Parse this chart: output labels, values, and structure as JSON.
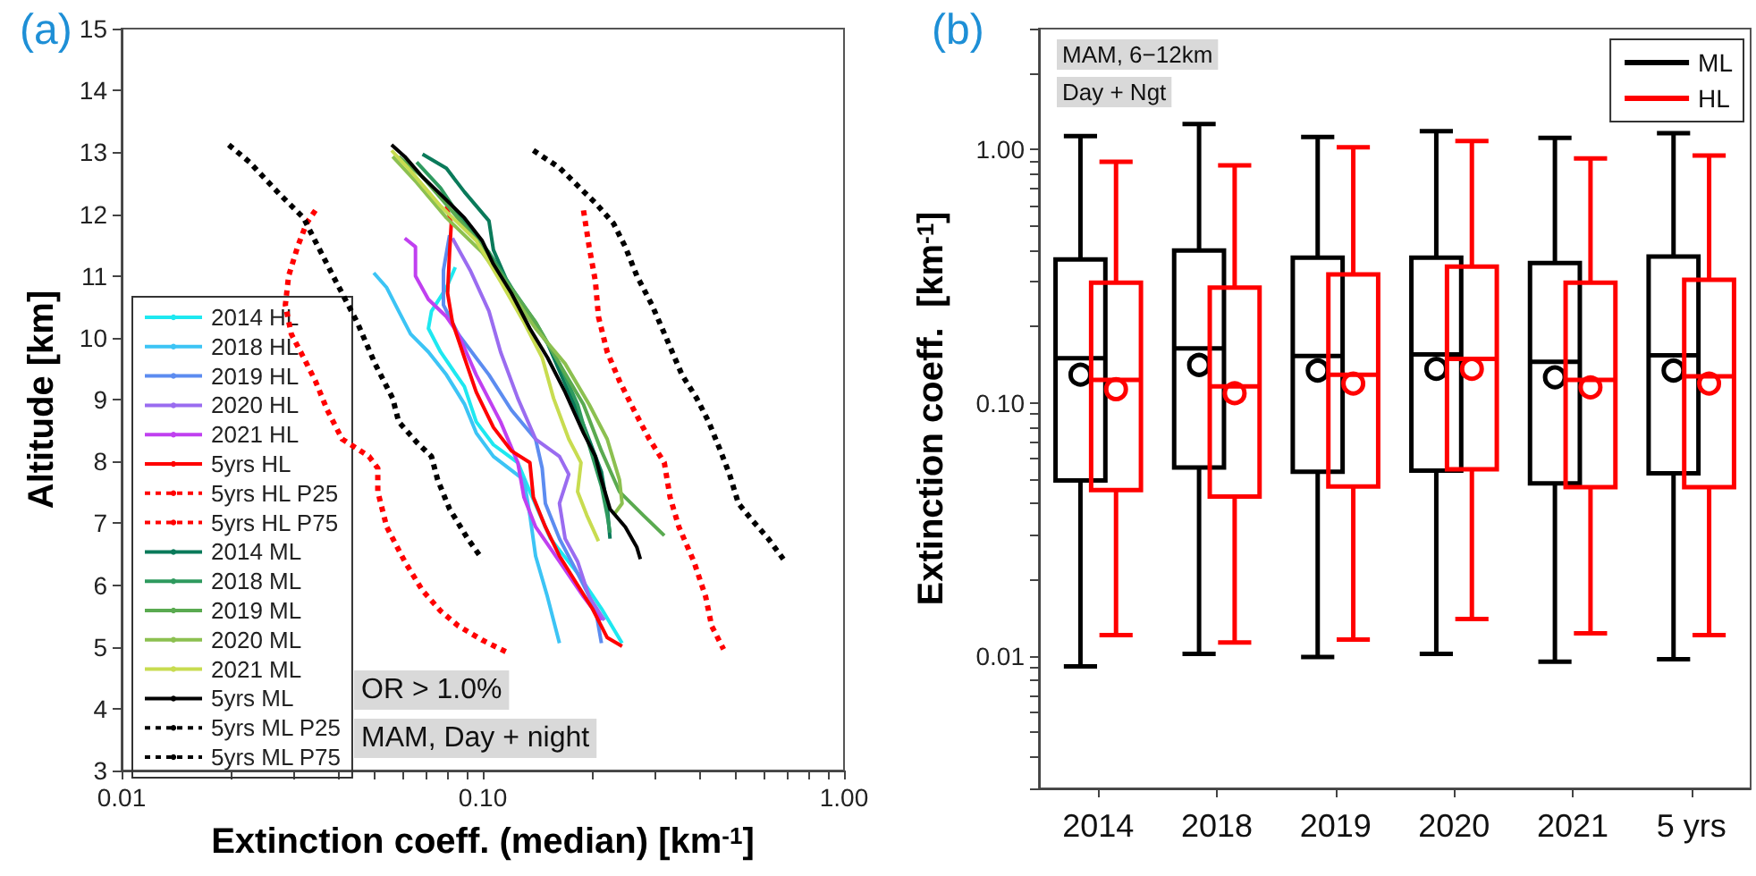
{
  "chart_data": [
    {
      "type": "line",
      "title": "(a)",
      "xlabel": "Extinction coeff. (median) [km$^{-1}$]",
      "ylabel": "Altitude [km]",
      "log": "x",
      "xlim": [
        0.01,
        1.0
      ],
      "xticks": [
        {
          "value": 0.01,
          "label": "0.01"
        },
        {
          "value": 0.1,
          "label": "0.10"
        },
        {
          "value": 1.0,
          "label": "1.00"
        }
      ],
      "ylim": [
        3,
        15
      ],
      "yticks": [
        3,
        4,
        5,
        6,
        7,
        8,
        9,
        10,
        11,
        12,
        13,
        14,
        15
      ],
      "grid": false,
      "legend": "bottom left",
      "marker": "none",
      "annotations": [
        "OR > 1.0%",
        "MAM, Day + night"
      ],
      "series": [
        {
          "name": "2014 HL",
          "color": "#1ee8f0",
          "line_style": "solid",
          "x": [
            0.0839,
            0.0793,
            0.0721,
            0.0707,
            0.0764,
            0.0889,
            0.0959,
            0.107,
            0.125,
            0.135,
            0.154,
            0.183,
            0.213,
            0.243
          ],
          "values": [
            11.14,
            10.81,
            10.43,
            10.15,
            9.77,
            9.21,
            8.64,
            8.27,
            7.98,
            7.51,
            6.75,
            6.19,
            5.62,
            5.06
          ]
        },
        {
          "name": "2018 HL",
          "color": "#3cc4f5",
          "line_style": "solid",
          "x": [
            0.0499,
            0.0542,
            0.0585,
            0.0631,
            0.0707,
            0.0793,
            0.0889,
            0.0959,
            0.107,
            0.13,
            0.135,
            0.14,
            0.151,
            0.163
          ],
          "values": [
            11.05,
            10.81,
            10.43,
            10.06,
            9.77,
            9.4,
            8.93,
            8.46,
            8.08,
            7.7,
            7.13,
            6.47,
            5.81,
            5.06
          ]
        },
        {
          "name": "2019 HL",
          "color": "#5c8cf0",
          "line_style": "solid",
          "x": [
            0.0809,
            0.0778,
            0.0778,
            0.0855,
            0.104,
            0.12,
            0.14,
            0.146,
            0.149,
            0.163,
            0.183,
            0.205,
            0.213
          ],
          "values": [
            11.66,
            11.09,
            10.53,
            10.06,
            9.4,
            8.83,
            8.36,
            7.89,
            7.32,
            6.75,
            6.19,
            5.62,
            5.06
          ]
        },
        {
          "name": "2020 HL",
          "color": "#9a6cf0",
          "line_style": "solid",
          "x": [
            0.0824,
            0.0923,
            0.104,
            0.112,
            0.125,
            0.14,
            0.163,
            0.173,
            0.163,
            0.169,
            0.183,
            0.197,
            0.217
          ],
          "values": [
            11.61,
            11.09,
            10.43,
            9.77,
            9.02,
            8.36,
            8.08,
            7.79,
            7.32,
            6.75,
            6.38,
            5.81,
            5.43
          ]
        },
        {
          "name": "2021 HL",
          "color": "#c040f0",
          "line_style": "solid",
          "x": [
            0.0608,
            0.0651,
            0.0651,
            0.0707,
            0.0793,
            0.0855,
            0.0959,
            0.112,
            0.125,
            0.13,
            0.14,
            0.163,
            0.19,
            0.213
          ],
          "values": [
            11.61,
            11.47,
            11.0,
            10.62,
            10.34,
            10.06,
            9.4,
            8.64,
            7.98,
            7.42,
            6.94,
            6.38,
            5.81,
            5.43
          ]
        },
        {
          "name": "5yrs HL",
          "color": "#ff0000",
          "line_style": "solid",
          "x": [
            0.0793,
            0.0818,
            0.0809,
            0.0799,
            0.0824,
            0.0889,
            0.0959,
            0.107,
            0.12,
            0.135,
            0.138,
            0.149,
            0.163,
            0.183,
            0.201,
            0.221,
            0.243
          ],
          "values": [
            12.13,
            11.85,
            11.38,
            10.72,
            10.25,
            9.68,
            9.12,
            8.55,
            8.17,
            7.98,
            7.42,
            6.94,
            6.47,
            6.0,
            5.62,
            5.15,
            5.01
          ]
        },
        {
          "name": "5yrs HL P25",
          "color": "#ff0000",
          "line_style": "dashed",
          "x": [
            0.0344,
            0.0325,
            0.0307,
            0.029,
            0.0284,
            0.0295,
            0.0319,
            0.0344,
            0.0371,
            0.0408,
            0.0484,
            0.0512,
            0.0512,
            0.0542,
            0.0608,
            0.0681,
            0.0764,
            0.0855,
            0.0996,
            0.116
          ],
          "values": [
            12.06,
            11.85,
            11.47,
            11.0,
            10.53,
            10.06,
            9.68,
            9.3,
            8.83,
            8.36,
            8.08,
            7.89,
            7.51,
            6.94,
            6.38,
            5.91,
            5.58,
            5.34,
            5.11,
            4.92
          ]
        },
        {
          "name": "5yrs HL P75",
          "color": "#ff0000",
          "line_style": "dashed",
          "x": [
            0.19,
            0.197,
            0.205,
            0.209,
            0.221,
            0.239,
            0.262,
            0.289,
            0.318,
            0.33,
            0.349,
            0.384,
            0.414,
            0.43,
            0.464
          ],
          "values": [
            12.06,
            11.47,
            10.91,
            10.34,
            9.77,
            9.3,
            8.83,
            8.36,
            7.98,
            7.42,
            6.94,
            6.38,
            5.81,
            5.34,
            4.96
          ]
        },
        {
          "name": "2014 ML",
          "color": "#0a7a5a",
          "line_style": "solid",
          "x": [
            0.0681,
            0.0793,
            0.0889,
            0.104,
            0.107,
            0.116,
            0.13,
            0.151,
            0.169,
            0.19,
            0.213,
            0.221,
            0.225
          ],
          "values": [
            12.97,
            12.74,
            12.36,
            11.89,
            11.42,
            10.95,
            10.47,
            9.91,
            9.25,
            8.59,
            7.83,
            7.27,
            6.75
          ]
        },
        {
          "name": "2018 ML",
          "color": "#2e9a5e",
          "line_style": "solid",
          "x": [
            0.0656,
            0.0764,
            0.0889,
            0.104,
            0.12,
            0.14,
            0.163,
            0.183,
            0.197,
            0.213,
            0.221,
            0.225
          ],
          "values": [
            12.84,
            12.42,
            11.85,
            11.38,
            10.81,
            10.25,
            9.58,
            8.92,
            8.26,
            7.6,
            7.13,
            6.85
          ]
        },
        {
          "name": "2019 ML",
          "color": "#5aaa50",
          "line_style": "solid",
          "x": [
            0.0585,
            0.0681,
            0.0824,
            0.0996,
            0.116,
            0.14,
            0.163,
            0.19,
            0.213,
            0.239,
            0.278,
            0.318
          ],
          "values": [
            12.93,
            12.6,
            12.04,
            11.47,
            10.91,
            10.25,
            9.58,
            8.92,
            8.17,
            7.51,
            7.13,
            6.8
          ]
        },
        {
          "name": "2020 ML",
          "color": "#8cc050",
          "line_style": "solid",
          "x": [
            0.0563,
            0.0656,
            0.0793,
            0.0996,
            0.12,
            0.14,
            0.169,
            0.197,
            0.221,
            0.239,
            0.243,
            0.23
          ],
          "values": [
            12.93,
            12.51,
            11.94,
            11.38,
            10.72,
            10.15,
            9.58,
            8.92,
            8.36,
            7.7,
            7.32,
            7.13
          ]
        },
        {
          "name": "2021 ML",
          "color": "#c8dc50",
          "line_style": "solid",
          "x": [
            0.0559,
            0.0631,
            0.0764,
            0.0959,
            0.112,
            0.13,
            0.146,
            0.157,
            0.173,
            0.187,
            0.183,
            0.194,
            0.209
          ],
          "values": [
            13.03,
            12.7,
            12.13,
            11.57,
            10.91,
            10.25,
            9.68,
            9.02,
            8.36,
            7.98,
            7.51,
            7.13,
            6.71
          ]
        },
        {
          "name": "5yrs ML",
          "color": "#000000",
          "line_style": "solid",
          "x": [
            0.0559,
            0.0608,
            0.0681,
            0.0764,
            0.0889,
            0.0996,
            0.107,
            0.12,
            0.135,
            0.151,
            0.169,
            0.19,
            0.205,
            0.213,
            0.225,
            0.248,
            0.267,
            0.273
          ],
          "values": [
            13.12,
            12.93,
            12.6,
            12.32,
            11.94,
            11.57,
            11.19,
            10.72,
            10.15,
            9.68,
            9.12,
            8.46,
            8.08,
            7.7,
            7.23,
            6.94,
            6.61,
            6.42
          ]
        },
        {
          "name": "5yrs ML P25",
          "color": "#000000",
          "line_style": "dashed",
          "x": [
            0.0198,
            0.0226,
            0.0274,
            0.0319,
            0.0337,
            0.0385,
            0.0449,
            0.0503,
            0.0563,
            0.0585,
            0.0656,
            0.0721,
            0.075,
            0.0809,
            0.0906,
            0.0996
          ],
          "values": [
            13.12,
            12.84,
            12.32,
            11.94,
            11.66,
            11.0,
            10.25,
            9.58,
            9.02,
            8.64,
            8.31,
            8.08,
            7.7,
            7.23,
            6.76,
            6.42
          ]
        },
        {
          "name": "5yrs ML P75",
          "color": "#000000",
          "line_style": "dashed",
          "x": [
            0.138,
            0.163,
            0.183,
            0.205,
            0.23,
            0.248,
            0.267,
            0.294,
            0.324,
            0.356,
            0.391,
            0.422,
            0.455,
            0.482,
            0.51,
            0.551,
            0.617,
            0.679
          ],
          "values": [
            13.03,
            12.75,
            12.46,
            12.18,
            11.85,
            11.47,
            11.0,
            10.53,
            9.96,
            9.4,
            9.02,
            8.64,
            8.17,
            7.79,
            7.32,
            7.08,
            6.75,
            6.42
          ]
        }
      ]
    },
    {
      "type": "box",
      "title": "(b)",
      "ylabel": "Extinction coeff.  [km$^{-1}$]",
      "log": true,
      "ylim": [
        0.003,
        3
      ],
      "yticks": [
        {
          "value": 0.01,
          "label": "0.01"
        },
        {
          "value": 0.1,
          "label": "0.10"
        },
        {
          "value": 1,
          "label": "1.00"
        }
      ],
      "grid": false,
      "legend": "top right",
      "annotations": [
        "MAM, 6−12km",
        "Day + Ngt"
      ],
      "categories": [
        "2014",
        "2018",
        "2019",
        "2020",
        "2021",
        "5 yrs"
      ],
      "series": [
        {
          "name": "ML",
          "color": "#000000",
          "boxes": [
            {
              "low": 0.0091,
              "q1": 0.0493,
              "median": 0.15,
              "q3": 0.368,
              "high": 1.13,
              "mean": 0.129
            },
            {
              "low": 0.0102,
              "q1": 0.0555,
              "median": 0.164,
              "q3": 0.399,
              "high": 1.26,
              "mean": 0.141
            },
            {
              "low": 0.0099,
              "q1": 0.0534,
              "median": 0.153,
              "q3": 0.374,
              "high": 1.12,
              "mean": 0.134
            },
            {
              "low": 0.0102,
              "q1": 0.0539,
              "median": 0.155,
              "q3": 0.374,
              "high": 1.18,
              "mean": 0.136
            },
            {
              "low": 0.0095,
              "q1": 0.048,
              "median": 0.145,
              "q3": 0.356,
              "high": 1.11,
              "mean": 0.126
            },
            {
              "low": 0.0097,
              "q1": 0.0526,
              "median": 0.154,
              "q3": 0.378,
              "high": 1.16,
              "mean": 0.134
            }
          ]
        },
        {
          "name": "HL",
          "color": "#ff0000",
          "boxes": [
            {
              "low": 0.0121,
              "q1": 0.0452,
              "median": 0.123,
              "q3": 0.298,
              "high": 0.893,
              "mean": 0.113
            },
            {
              "low": 0.0113,
              "q1": 0.0426,
              "median": 0.116,
              "q3": 0.285,
              "high": 0.865,
              "mean": 0.109
            },
            {
              "low": 0.0116,
              "q1": 0.0467,
              "median": 0.129,
              "q3": 0.321,
              "high": 1.02,
              "mean": 0.119
            },
            {
              "low": 0.014,
              "q1": 0.0546,
              "median": 0.149,
              "q3": 0.345,
              "high": 1.08,
              "mean": 0.136
            },
            {
              "low": 0.0123,
              "q1": 0.0464,
              "median": 0.123,
              "q3": 0.298,
              "high": 0.922,
              "mean": 0.115
            },
            {
              "low": 0.0121,
              "q1": 0.0464,
              "median": 0.127,
              "q3": 0.306,
              "high": 0.947,
              "mean": 0.119
            }
          ]
        }
      ]
    }
  ]
}
